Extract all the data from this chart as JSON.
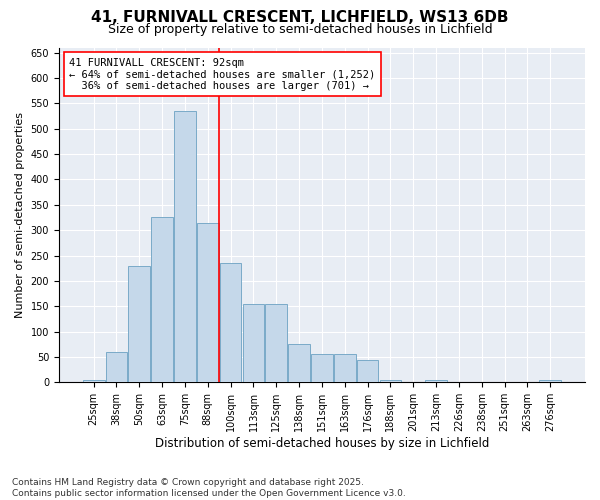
{
  "title1": "41, FURNIVALL CRESCENT, LICHFIELD, WS13 6DB",
  "title2": "Size of property relative to semi-detached houses in Lichfield",
  "xlabel": "Distribution of semi-detached houses by size in Lichfield",
  "ylabel": "Number of semi-detached properties",
  "bins": [
    "25sqm",
    "38sqm",
    "50sqm",
    "63sqm",
    "75sqm",
    "88sqm",
    "100sqm",
    "113sqm",
    "125sqm",
    "138sqm",
    "151sqm",
    "163sqm",
    "176sqm",
    "188sqm",
    "201sqm",
    "213sqm",
    "226sqm",
    "238sqm",
    "251sqm",
    "263sqm",
    "276sqm"
  ],
  "values": [
    5,
    60,
    230,
    325,
    535,
    315,
    235,
    155,
    155,
    75,
    55,
    55,
    45,
    5,
    0,
    5,
    0,
    0,
    0,
    0,
    5
  ],
  "bar_color": "#c5d8ea",
  "bar_edge_color": "#7aaac8",
  "property_line_bin": 5,
  "property_sqm": 92,
  "annotation_line1": "41 FURNIVALL CRESCENT: 92sqm",
  "annotation_line2": "← 64% of semi-detached houses are smaller (1,252)",
  "annotation_line3": "  36% of semi-detached houses are larger (701) →",
  "ylim": [
    0,
    660
  ],
  "yticks": [
    0,
    50,
    100,
    150,
    200,
    250,
    300,
    350,
    400,
    450,
    500,
    550,
    600,
    650
  ],
  "background_color": "#e8edf4",
  "footer_text": "Contains HM Land Registry data © Crown copyright and database right 2025.\nContains public sector information licensed under the Open Government Licence v3.0.",
  "title1_fontsize": 11,
  "title2_fontsize": 9,
  "xlabel_fontsize": 8.5,
  "ylabel_fontsize": 8,
  "annotation_fontsize": 7.5,
  "footer_fontsize": 6.5,
  "tick_fontsize": 7
}
